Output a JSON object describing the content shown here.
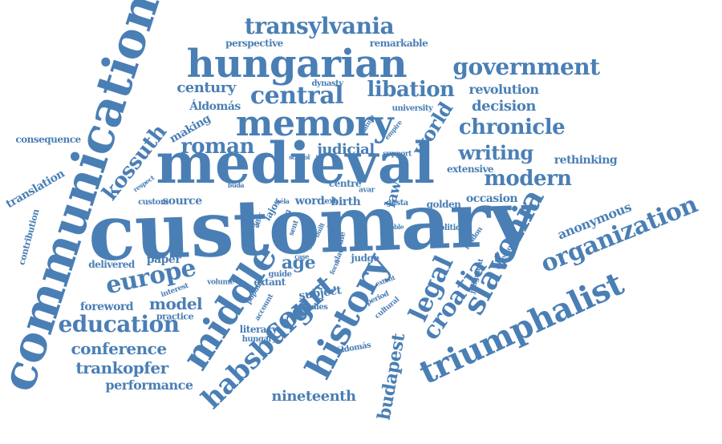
{
  "colors": {
    "word": "#4a7fb5",
    "background": "#ffffff"
  },
  "words": [
    "customary",
    "medieval",
    "communication",
    "hungarian",
    "memory",
    "triumphalist",
    "history",
    "habsburg",
    "middle",
    "slavonia",
    "croatia",
    "legal",
    "court",
    "organization",
    "transylvania",
    "government",
    "central",
    "libation",
    "chronicle",
    "europe",
    "education",
    "modern",
    "writing",
    "kossuth",
    "roman",
    "budapest",
    "conference",
    "trankopfer",
    "nineteenth",
    "performance",
    "anonymous",
    "model",
    "decision",
    "revolution",
    "age",
    "century",
    "judicial",
    "world",
    "law",
    "rethinking",
    "translation",
    "consequence",
    "foreword",
    "delivered",
    "paper",
    "source",
    "custom",
    "occasion",
    "golden",
    "birth",
    "word",
    "centre",
    "gesta",
    "judge",
    "extensive",
    "extant",
    "guide",
    "subject",
    "studies",
    "literacy",
    "hungary",
    "making",
    "Áldomás",
    "áldomás",
    "perspective",
    "remarkable",
    "dynasty",
    "university",
    "support",
    "contribution",
    "volume",
    "interest",
    "practice",
    "cultural",
    "period",
    "political",
    "london",
    "director",
    "judgment",
    "noble",
    "respect",
    "buda",
    "béla",
    "lajos",
    "avar",
    "text",
    "account",
    "popular",
    "king",
    "sent",
    "rule",
    "slav",
    "form",
    "gener",
    "built",
    "case",
    "school",
    "statute",
    "empire",
    "ssees",
    "offer",
    "rady",
    "extent"
  ]
}
